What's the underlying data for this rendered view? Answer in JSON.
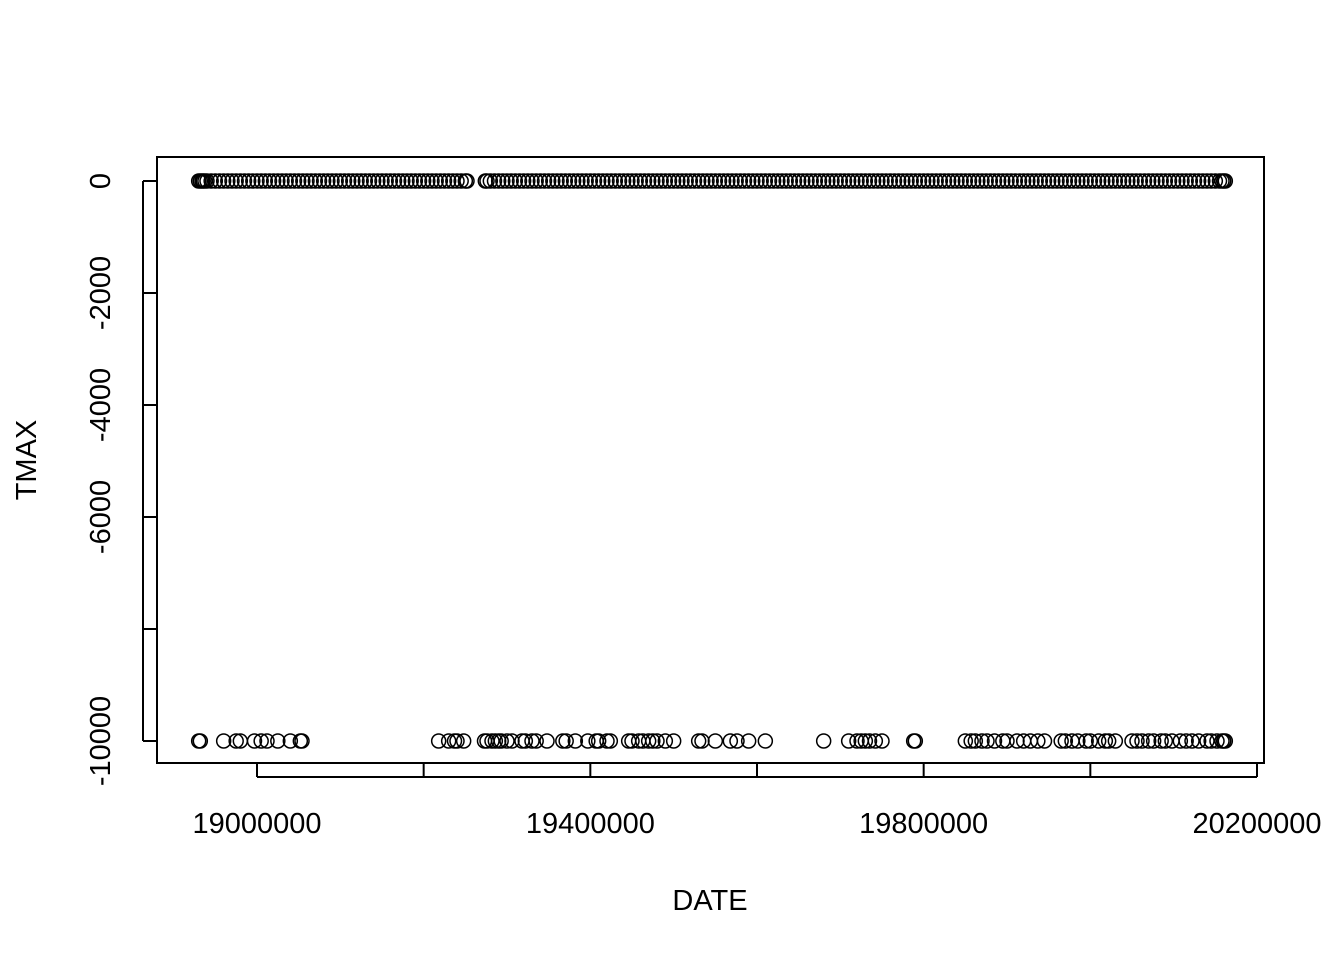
{
  "chart_data": {
    "type": "scatter",
    "title": "",
    "xlabel": "DATE",
    "ylabel": "TMAX",
    "xlim": [
      18880000,
      20210000
    ],
    "ylim": [
      -10400,
      400
    ],
    "x_ticks": [
      {
        "value": 19000000,
        "label": "19000000"
      },
      {
        "value": 19200000,
        "label": ""
      },
      {
        "value": 19400000,
        "label": "19400000"
      },
      {
        "value": 19600000,
        "label": ""
      },
      {
        "value": 19800000,
        "label": "19800000"
      },
      {
        "value": 20000000,
        "label": ""
      },
      {
        "value": 20200000,
        "label": "20200000"
      }
    ],
    "y_ticks": [
      {
        "value": 0,
        "label": "0"
      },
      {
        "value": -2000,
        "label": "-2000"
      },
      {
        "value": -4000,
        "label": "-4000"
      },
      {
        "value": -6000,
        "label": "-6000"
      },
      {
        "value": -8000,
        "label": ""
      },
      {
        "value": -10000,
        "label": "-10000"
      }
    ],
    "marker": "open-circle",
    "grid": false,
    "legend": "none",
    "series": [
      {
        "values_at_zero": {
          "y": 0,
          "x": [
            18930000,
            18932000,
            18934000,
            18935500,
            18937500,
            18940000,
            18945000,
            18950000,
            18955000,
            18960000,
            18965000,
            18970000,
            18975000,
            18980000,
            18985000,
            18990000,
            18995000,
            19000000,
            19005000,
            19010000,
            19015000,
            19020000,
            19025000,
            19030000,
            19035000,
            19040000,
            19045000,
            19050000,
            19055000,
            19060000,
            19065000,
            19070000,
            19075000,
            19080000,
            19085000,
            19090000,
            19095000,
            19100000,
            19105000,
            19110000,
            19115000,
            19120000,
            19125000,
            19130000,
            19135000,
            19140000,
            19145000,
            19150000,
            19155000,
            19160000,
            19165000,
            19170000,
            19175000,
            19180000,
            19185000,
            19190000,
            19195000,
            19200000,
            19205000,
            19210000,
            19215000,
            19220000,
            19225000,
            19230000,
            19235000,
            19240000,
            19245000,
            19250000,
            19252000,
            19274000,
            19276000,
            19280000,
            19285000,
            19290000,
            19295000,
            19300000,
            19305000,
            19310000,
            19315000,
            19320000,
            19325000,
            19330000,
            19335000,
            19340000,
            19345000,
            19350000,
            19355000,
            19360000,
            19365000,
            19370000,
            19375000,
            19380000,
            19385000,
            19390000,
            19395000,
            19400000,
            19405000,
            19410000,
            19415000,
            19420000,
            19425000,
            19430000,
            19435000,
            19440000,
            19445000,
            19450000,
            19455000,
            19460000,
            19465000,
            19470000,
            19475000,
            19480000,
            19485000,
            19490000,
            19495000,
            19500000,
            19505000,
            19510000,
            19515000,
            19520000,
            19525000,
            19530000,
            19535000,
            19540000,
            19545000,
            19550000,
            19555000,
            19560000,
            19565000,
            19570000,
            19575000,
            19580000,
            19585000,
            19590000,
            19595000,
            19600000,
            19605000,
            19610000,
            19615000,
            19620000,
            19625000,
            19630000,
            19635000,
            19640000,
            19645000,
            19650000,
            19655000,
            19660000,
            19665000,
            19670000,
            19675000,
            19680000,
            19685000,
            19690000,
            19695000,
            19700000,
            19705000,
            19710000,
            19715000,
            19720000,
            19725000,
            19730000,
            19735000,
            19740000,
            19745000,
            19750000,
            19755000,
            19760000,
            19765000,
            19770000,
            19775000,
            19780000,
            19785000,
            19790000,
            19795000,
            19800000,
            19805000,
            19810000,
            19815000,
            19820000,
            19825000,
            19830000,
            19835000,
            19840000,
            19845000,
            19850000,
            19855000,
            19860000,
            19865000,
            19870000,
            19875000,
            19880000,
            19885000,
            19890000,
            19895000,
            19900000,
            19905000,
            19910000,
            19915000,
            19920000,
            19925000,
            19930000,
            19935000,
            19940000,
            19945000,
            19950000,
            19955000,
            19960000,
            19965000,
            19970000,
            19975000,
            19980000,
            19985000,
            19990000,
            19995000,
            20000000,
            20005000,
            20010000,
            20015000,
            20020000,
            20025000,
            20030000,
            20035000,
            20040000,
            20045000,
            20050000,
            20055000,
            20060000,
            20065000,
            20070000,
            20075000,
            20080000,
            20085000,
            20090000,
            20095000,
            20100000,
            20105000,
            20110000,
            20115000,
            20120000,
            20125000,
            20130000,
            20135000,
            20140000,
            20145000,
            20150000,
            20155000,
            20158000,
            20160000,
            20162000
          ]
        },
        "values_at_minus_10000": {
          "y": -10000,
          "x": [
            18930000,
            18932000,
            18960000,
            18975000,
            18980000,
            18997000,
            19005000,
            19012000,
            19025000,
            19040000,
            19052000,
            19054000,
            19218000,
            19230000,
            19237000,
            19240000,
            19248000,
            19273000,
            19276000,
            19282000,
            19286000,
            19290000,
            19293000,
            19300000,
            19306000,
            19318000,
            19322000,
            19330000,
            19335000,
            19348000,
            19367000,
            19371000,
            19382000,
            19397000,
            19407000,
            19410000,
            19420000,
            19424000,
            19446000,
            19450000,
            19458000,
            19463000,
            19470000,
            19475000,
            19480000,
            19490000,
            19500000,
            19530000,
            19534000,
            19550000,
            19568000,
            19576000,
            19590000,
            19610000,
            19680000,
            19710000,
            19720000,
            19725000,
            19730000,
            19735000,
            19742000,
            19750000,
            19788000,
            19790000,
            19850000,
            19857000,
            19862000,
            19870000,
            19876000,
            19885000,
            19895000,
            19900000,
            19912000,
            19920000,
            19928000,
            19937000,
            19945000,
            19965000,
            19970000,
            19978000,
            19985000,
            19995000,
            20000000,
            20010000,
            20018000,
            20022000,
            20030000,
            20050000,
            20056000,
            20062000,
            20070000,
            20076000,
            20085000,
            20090000,
            20098000,
            20108000,
            20115000,
            20122000,
            20130000,
            20140000,
            20145000,
            20152000,
            20158000,
            20160000,
            20162000
          ]
        }
      }
    ]
  }
}
